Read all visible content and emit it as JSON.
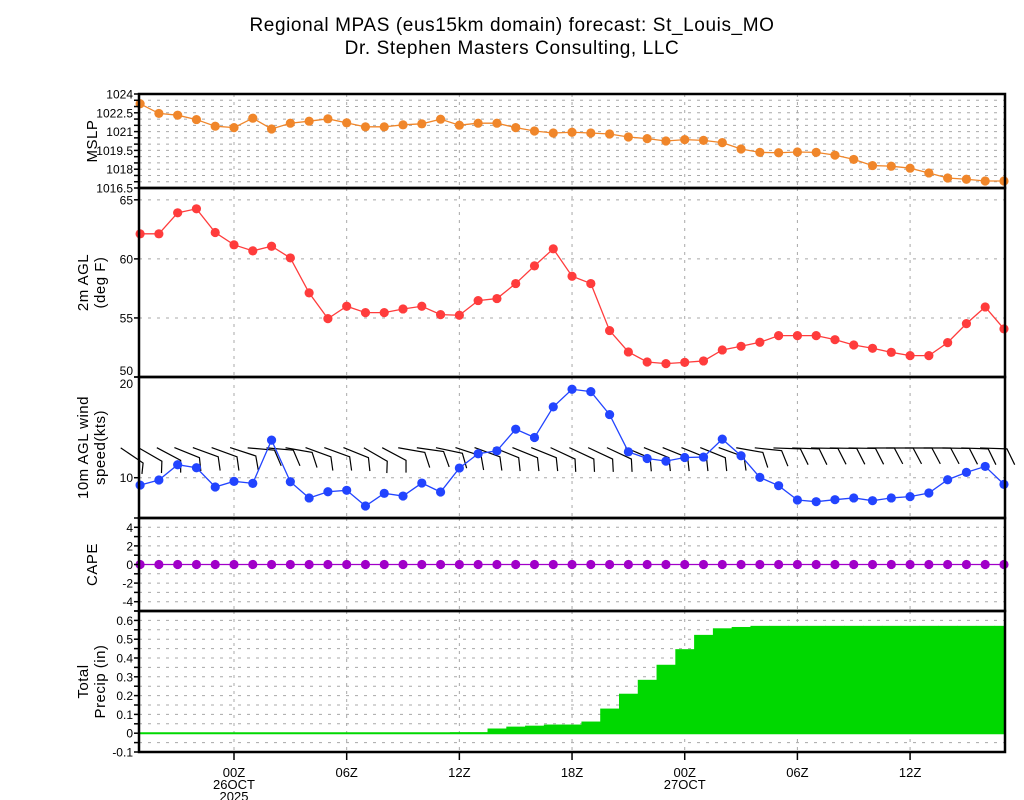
{
  "title": {
    "line1": "Regional MPAS (eus15km domain) forecast: St_Louis_MO",
    "line2": "Dr. Stephen Masters Consulting, LLC"
  },
  "chart_data": {
    "type": "line",
    "x_hours_from_00Z_26OCT": [
      -5,
      -4,
      -3,
      -2,
      -1,
      0,
      1,
      2,
      3,
      4,
      5,
      6,
      7,
      8,
      9,
      10,
      11,
      12,
      13,
      14,
      15,
      16,
      17,
      18,
      19,
      20,
      21,
      22,
      23,
      24,
      25,
      26,
      27,
      28,
      29,
      30,
      31,
      32,
      33,
      34,
      35,
      36,
      37,
      38,
      39,
      40,
      41
    ],
    "x_ticks": [
      {
        "hour": 0,
        "label": "00Z",
        "date": "26OCT",
        "year": "2025"
      },
      {
        "hour": 6,
        "label": "06Z"
      },
      {
        "hour": 12,
        "label": "12Z"
      },
      {
        "hour": 18,
        "label": "18Z"
      },
      {
        "hour": 24,
        "label": "00Z",
        "date": "27OCT"
      },
      {
        "hour": 30,
        "label": "06Z"
      },
      {
        "hour": 36,
        "label": "12Z"
      }
    ],
    "panels": [
      {
        "id": "mslp",
        "type": "line",
        "ylabel": [
          "MSLP"
        ],
        "ylim": [
          1016.5,
          1024
        ],
        "ytick_step": 0.5,
        "grid_all": true,
        "color": "#f0862a",
        "values": [
          1023.22,
          1022.45,
          1022.31,
          1021.96,
          1021.43,
          1021.32,
          1022.07,
          1021.21,
          1021.67,
          1021.83,
          1022.02,
          1021.7,
          1021.38,
          1021.38,
          1021.54,
          1021.62,
          1021.99,
          1021.51,
          1021.67,
          1021.67,
          1021.32,
          1021.05,
          1020.89,
          1020.95,
          1020.89,
          1020.81,
          1020.57,
          1020.44,
          1020.25,
          1020.36,
          1020.3,
          1020.12,
          1019.61,
          1019.34,
          1019.31,
          1019.37,
          1019.34,
          1019.12,
          1018.78,
          1018.29,
          1018.24,
          1018.08,
          1017.7,
          1017.3,
          1017.2,
          1017.06,
          1017.06
        ]
      },
      {
        "id": "temp",
        "type": "line",
        "ylabel": [
          "2m AGL",
          "(deg F)"
        ],
        "ylim": [
          50,
          66
        ],
        "yticks": [
          50,
          55,
          60,
          65
        ],
        "grid": [
          55,
          60,
          65
        ],
        "color": "#ff3c3c",
        "values": [
          62.12,
          62.12,
          63.9,
          64.24,
          62.23,
          61.19,
          60.68,
          61.07,
          60.08,
          57.12,
          54.94,
          55.99,
          55.45,
          55.45,
          55.76,
          55.99,
          55.28,
          55.23,
          56.47,
          56.64,
          57.91,
          59.41,
          60.85,
          58.53,
          57.91,
          53.93,
          52.12,
          51.27,
          51.13,
          51.24,
          51.36,
          52.29,
          52.6,
          52.94,
          53.5,
          53.5,
          53.5,
          53.16,
          52.71,
          52.43,
          52.09,
          51.81,
          51.81,
          52.91,
          54.52,
          55.93,
          54.07
        ]
      },
      {
        "id": "wind",
        "type": "line",
        "ylabel": [
          "10m AGL wind",
          "speed(kts)"
        ],
        "ylim": [
          6,
          20
        ],
        "yticks": [
          10,
          20
        ],
        "grid": [
          10
        ],
        "color": "#2244ff",
        "values": [
          9.27,
          9.77,
          11.29,
          10.99,
          9.08,
          9.64,
          9.44,
          13.73,
          9.6,
          7.99,
          8.61,
          8.75,
          7.19,
          8.45,
          8.18,
          9.47,
          8.58,
          10.96,
          12.38,
          12.67,
          14.82,
          13.99,
          17.03,
          18.78,
          18.55,
          16.27,
          12.57,
          11.91,
          11.65,
          12.01,
          12.05,
          13.83,
          12.18,
          10.03,
          9.21,
          7.79,
          7.62,
          7.82,
          7.99,
          7.72,
          7.99,
          8.12,
          8.48,
          9.8,
          10.53,
          11.12,
          9.34
        ],
        "barb_direction_deg": [
          304,
          300,
          298,
          292,
          290,
          290,
          288,
          275,
          275,
          280,
          290,
          290,
          292,
          300,
          298,
          280,
          278,
          282,
          288,
          290,
          292,
          292,
          292,
          295,
          295,
          295,
          295,
          293,
          292,
          292,
          292,
          292,
          290,
          280,
          276,
          272,
          272,
          271,
          271,
          271,
          270,
          270,
          270,
          270,
          271,
          272,
          272
        ]
      },
      {
        "id": "cape",
        "type": "line",
        "ylabel": [
          "CAPE"
        ],
        "ylim": [
          -5,
          5
        ],
        "ytick_step": 1,
        "grid_all": true,
        "color": "#a000c8",
        "values": [
          0,
          0,
          0,
          0,
          0,
          0,
          0,
          0,
          0,
          0,
          0,
          0,
          0,
          0,
          0,
          0,
          0,
          0,
          0,
          0,
          0,
          0,
          0,
          0,
          0,
          0,
          0,
          0,
          0,
          0,
          0,
          0,
          0,
          0,
          0,
          0,
          0,
          0,
          0,
          0,
          0,
          0,
          0,
          0,
          0,
          0,
          0
        ]
      },
      {
        "id": "precip",
        "type": "area",
        "ylabel": [
          "Total",
          "Precip (in)"
        ],
        "ylim": [
          -0.1,
          0.65
        ],
        "ytick_step": 0.05,
        "grid_all": true,
        "color": "#00d800",
        "values": [
          0,
          0,
          0,
          0,
          0,
          0,
          0,
          0,
          0,
          0,
          0,
          0,
          0,
          0,
          0,
          0,
          0,
          0.005,
          0.005,
          0.025,
          0.035,
          0.04,
          0.046,
          0.046,
          0.062,
          0.131,
          0.21,
          0.284,
          0.364,
          0.447,
          0.523,
          0.558,
          0.565,
          0.571,
          0.571,
          0.571,
          0.571,
          0.571,
          0.571,
          0.571,
          0.571,
          0.571,
          0.571,
          0.571,
          0.571,
          0.571,
          0.571
        ]
      }
    ]
  }
}
